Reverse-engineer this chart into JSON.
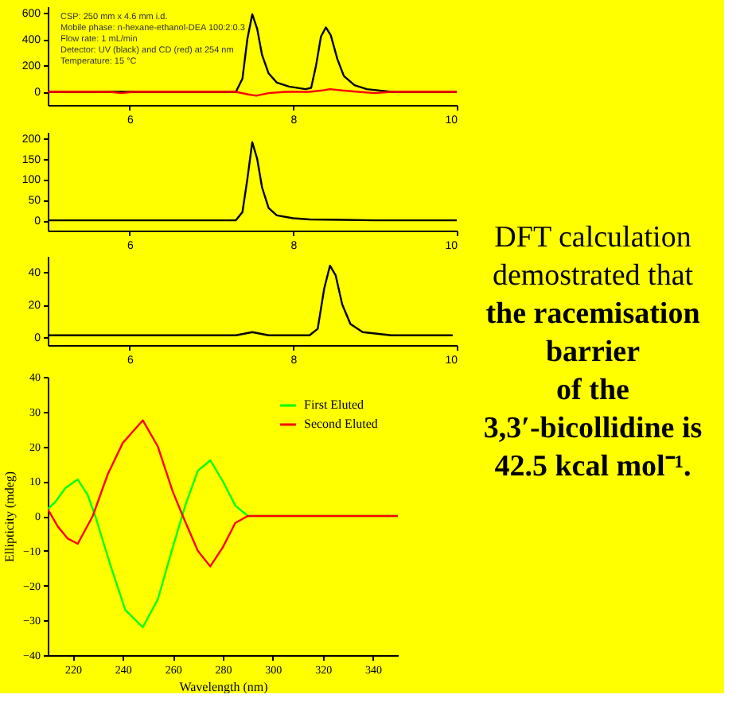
{
  "chart_data": [
    {
      "type": "line",
      "xlim": [
        5,
        10
      ],
      "xticks": [
        6,
        8,
        10
      ],
      "ylim": [
        -100,
        650
      ],
      "yticks": [
        0,
        200,
        400,
        600
      ],
      "grid": false,
      "annotations": [
        "CSP: 250 mm x 4.6 mm i.d.",
        "Mobile phase: n-hexane-ethanol-DEA 100:2:0.3",
        "Flow rate: 1 mL/min",
        "Detector: UV  (black) and CD (red) at 254 nm",
        "Temperature: 15 °C"
      ],
      "series": [
        {
          "color": "#000000",
          "x": [
            5.0,
            7.2,
            7.3,
            7.38,
            7.44,
            7.5,
            7.56,
            7.62,
            7.7,
            7.8,
            7.95,
            8.15,
            8.22,
            8.28,
            8.34,
            8.4,
            8.46,
            8.54,
            8.62,
            8.75,
            8.9,
            9.2,
            9.5,
            10.0
          ],
          "values": [
            0,
            0,
            0,
            100,
            400,
            590,
            480,
            280,
            140,
            70,
            40,
            20,
            30,
            200,
            420,
            490,
            430,
            250,
            120,
            50,
            20,
            0,
            0,
            0
          ]
        },
        {
          "color": "#ff0000",
          "x": [
            5.0,
            5.75,
            5.9,
            6.05,
            7.3,
            7.45,
            7.55,
            7.7,
            7.9,
            8.2,
            8.35,
            8.45,
            8.6,
            8.8,
            9.0,
            9.2,
            10.0
          ],
          "values": [
            0,
            0,
            -10,
            0,
            0,
            -20,
            -30,
            -10,
            0,
            0,
            10,
            20,
            10,
            0,
            -10,
            0,
            0
          ]
        }
      ]
    },
    {
      "type": "line",
      "xlim": [
        5,
        10
      ],
      "xticks": [
        6,
        8,
        10
      ],
      "ylim": [
        -25,
        215
      ],
      "yticks": [
        0,
        50,
        100,
        150,
        200
      ],
      "grid": false,
      "series": [
        {
          "color": "#000000",
          "x": [
            5.0,
            7.3,
            7.38,
            7.44,
            7.5,
            7.56,
            7.62,
            7.7,
            7.8,
            8.0,
            8.2,
            8.6,
            9.0,
            10.0
          ],
          "values": [
            0,
            0,
            20,
            100,
            190,
            150,
            80,
            30,
            12,
            5,
            2,
            1,
            0,
            0
          ]
        }
      ]
    },
    {
      "type": "line",
      "xlim": [
        5,
        10
      ],
      "xticks": [
        6,
        8,
        10
      ],
      "ylim": [
        -5,
        50
      ],
      "yticks": [
        0,
        20,
        40
      ],
      "grid": false,
      "series": [
        {
          "color": "#000000",
          "x": [
            5.0,
            7.3,
            7.5,
            7.7,
            8.2,
            8.3,
            8.38,
            8.45,
            8.52,
            8.6,
            8.7,
            8.85,
            9.2,
            9.95
          ],
          "values": [
            1,
            1,
            3,
            1,
            1,
            5,
            30,
            44,
            38,
            20,
            8,
            3,
            1,
            1
          ]
        }
      ]
    },
    {
      "type": "line",
      "xlim": [
        210,
        350
      ],
      "xticks": [
        220,
        240,
        260,
        280,
        300,
        320,
        340
      ],
      "ylim": [
        -40,
        40
      ],
      "yticks": [
        -40,
        -30,
        -20,
        -10,
        0,
        10,
        20,
        30,
        40
      ],
      "grid": false,
      "legend": "top right",
      "xlabel": "Wavelength (nm)",
      "ylabel": "Ellipticity (mdeg)",
      "series": [
        {
          "name": "First Eluted",
          "color": "#00ff00",
          "x": [
            210,
            213,
            217,
            222,
            226,
            229,
            235,
            241,
            248,
            254,
            260,
            265,
            270,
            275,
            280,
            285,
            290,
            350
          ],
          "values": [
            2,
            4,
            8,
            10.5,
            6,
            0,
            -14,
            -27,
            -32,
            -24,
            -9,
            3,
            13,
            16,
            10,
            3,
            0,
            0
          ]
        },
        {
          "name": "Second Eluted",
          "color": "#ff0000",
          "x": [
            210,
            214,
            218,
            222,
            225,
            228,
            234,
            240,
            248,
            254,
            260,
            264,
            270,
            275,
            280,
            285,
            290,
            350
          ],
          "values": [
            2,
            -3,
            -6.5,
            -8,
            -4,
            0,
            12,
            21,
            27.5,
            20,
            7,
            0,
            -10,
            -14.5,
            -9,
            -2,
            0,
            0
          ]
        }
      ]
    },
    {
      "type": "other",
      "annotations": [
        "DFT  calculation",
        "demostrated that",
        "the racemisation",
        "barrier",
        "of the",
        "3,3′-bicollidine is",
        "42.5 kcal mol⁻¹."
      ]
    }
  ]
}
